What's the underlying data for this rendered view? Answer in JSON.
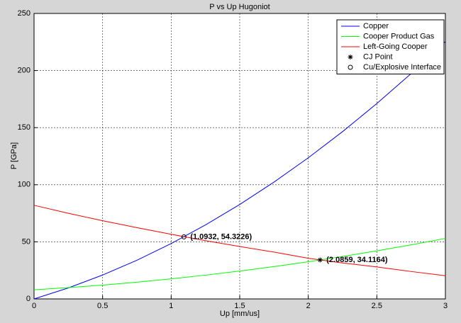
{
  "chart_data": {
    "type": "line",
    "title": "P vs Up Hugoniot",
    "x_label": "Up [mm/us]",
    "y_label": "P [GPa]",
    "x": [
      0,
      0.25,
      0.5,
      0.75,
      1,
      1.25,
      1.5,
      1.75,
      2,
      2.25,
      2.5,
      2.75,
      3
    ],
    "series": [
      {
        "name": "Copper",
        "color": "#0000ff",
        "values": [
          0,
          9.63,
          20.92,
          33.87,
          48.49,
          64.77,
          82.71,
          102.32,
          123.59,
          146.52,
          171.12,
          197.38,
          225.31
        ]
      },
      {
        "name": "Cooper Product Gas",
        "color": "#00ff00",
        "values": [
          8,
          9.89,
          12.11,
          14.68,
          17.58,
          20.82,
          24.4,
          28.32,
          32.58,
          37.18,
          42.11,
          47.39,
          53
        ]
      },
      {
        "name": "Left-Going Cooper",
        "color": "#ff0000",
        "values": [
          82,
          75,
          68.5,
          62.4,
          56.6,
          51,
          45.9,
          41,
          35.6,
          31.5,
          28,
          24,
          20.3
        ]
      },
      {
        "name": "CJ Point",
        "color": "#000000",
        "marker": "star",
        "x": [
          2.0859
        ],
        "values": [
          34.1164
        ],
        "value_labels": [
          "(2.0859, 34.1164)"
        ]
      },
      {
        "name": "Cu/Explosive Interface",
        "color": "#000000",
        "marker": "circle",
        "x": [
          1.0932
        ],
        "values": [
          54.3226
        ],
        "value_labels": [
          "(1.0932, 54.3226)"
        ]
      }
    ],
    "xlim": [
      0,
      3
    ],
    "xticks": [
      0,
      0.5,
      1,
      1.5,
      2,
      2.5,
      3
    ],
    "ylim": [
      0,
      250
    ],
    "yticks": [
      0,
      50,
      100,
      150,
      200,
      250
    ],
    "grid": true,
    "legend": "upper right"
  }
}
